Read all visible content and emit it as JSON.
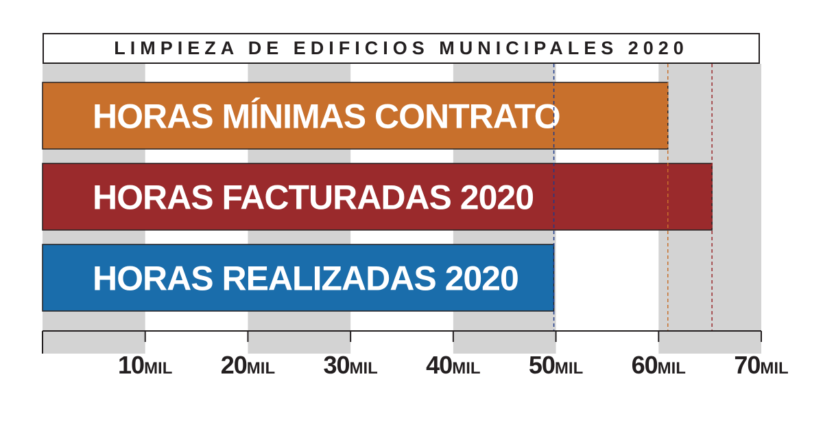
{
  "chart_data": {
    "type": "bar",
    "orientation": "horizontal",
    "title": "LIMPIEZA DE EDIFICIOS MUNICIPALES 2020",
    "categories": [
      "HORAS MÍNIMAS CONTRATO",
      "HORAS FACTURADAS 2020",
      "HORAS REALIZADAS 2020"
    ],
    "values": [
      60900,
      65200,
      49800
    ],
    "colors": [
      "#c8702c",
      "#9a2a2c",
      "#1a6dab"
    ],
    "xlim": [
      0,
      70000
    ],
    "ticks": [
      {
        "value": 10000,
        "number": "10",
        "unit": "MIL"
      },
      {
        "value": 20000,
        "number": "20",
        "unit": "MIL"
      },
      {
        "value": 30000,
        "number": "30",
        "unit": "MIL"
      },
      {
        "value": 40000,
        "number": "40",
        "unit": "MIL"
      },
      {
        "value": 50000,
        "number": "50",
        "unit": "MIL"
      },
      {
        "value": 60000,
        "number": "60",
        "unit": "MIL"
      },
      {
        "value": 70000,
        "number": "70",
        "unit": "MIL"
      }
    ],
    "grid": "alternating-bands",
    "band_color": "#d3d3d3",
    "reference_lines": true
  }
}
